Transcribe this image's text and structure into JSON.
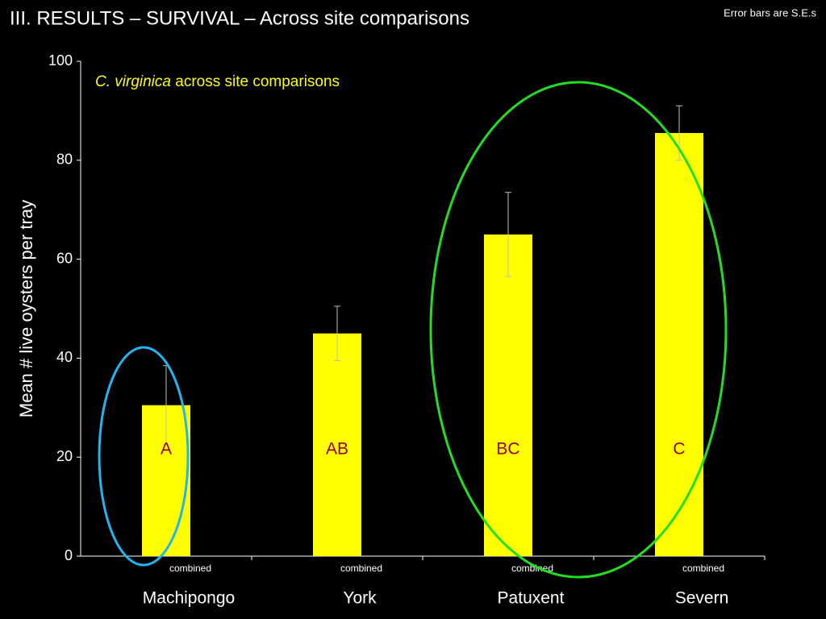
{
  "chart_data": {
    "type": "bar",
    "title": "III.  RESULTS –  SURVIVAL – Across site comparisons",
    "note": "Error bars are S.E.s",
    "subtitle_italic": "C. virginica",
    "subtitle": "across site comparisons",
    "y_label": "Mean # live oysters per tray",
    "categories": [
      "Machipongo",
      "York",
      "Patuxent",
      "Severn"
    ],
    "sublabels": [
      "combined",
      "combined",
      "combined",
      "combined"
    ],
    "group_letters": [
      "A",
      "AB",
      "BC",
      "C"
    ],
    "values": [
      30.5,
      45,
      65,
      85.5
    ],
    "errors": [
      8,
      5.5,
      8.5,
      5.5
    ],
    "color": "#ffff00",
    "ylim": [
      0,
      100
    ],
    "yticks": [
      0,
      20,
      40,
      60,
      80,
      100
    ]
  }
}
